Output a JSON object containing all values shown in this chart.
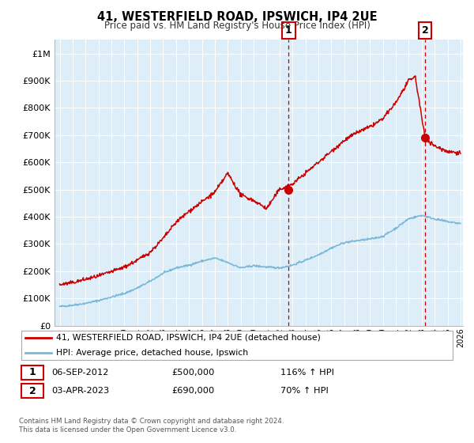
{
  "title": "41, WESTERFIELD ROAD, IPSWICH, IP4 2UE",
  "subtitle": "Price paid vs. HM Land Registry's House Price Index (HPI)",
  "legend_line1": "41, WESTERFIELD ROAD, IPSWICH, IP4 2UE (detached house)",
  "legend_line2": "HPI: Average price, detached house, Ipswich",
  "annotation1_date": "06-SEP-2012",
  "annotation1_price": "£500,000",
  "annotation1_hpi": "116% ↑ HPI",
  "annotation2_date": "03-APR-2023",
  "annotation2_price": "£690,000",
  "annotation2_hpi": "70% ↑ HPI",
  "footnote1": "Contains HM Land Registry data © Crown copyright and database right 2024.",
  "footnote2": "This data is licensed under the Open Government Licence v3.0.",
  "hpi_color": "#7ab8d9",
  "price_color": "#cc0000",
  "marker_color": "#cc0000",
  "dashed_line_color": "#cc0000",
  "background_color": "#ddeef8",
  "ylim": [
    0,
    1050000
  ],
  "yticks": [
    0,
    100000,
    200000,
    300000,
    400000,
    500000,
    600000,
    700000,
    800000,
    900000,
    1000000
  ],
  "ytick_labels": [
    "£0",
    "£100K",
    "£200K",
    "£300K",
    "£400K",
    "£500K",
    "£600K",
    "£700K",
    "£800K",
    "£900K",
    "£1M"
  ],
  "xlim_start": 1994.6,
  "xlim_end": 2026.2,
  "sale1_x": 2012.7,
  "sale1_y": 500000,
  "sale2_x": 2023.25,
  "sale2_y": 690000,
  "hpi_points_x": [
    1995,
    1996,
    1997,
    1998,
    1999,
    2000,
    2001,
    2002,
    2003,
    2004,
    2005,
    2006,
    2007,
    2008,
    2009,
    2010,
    2011,
    2012,
    2013,
    2014,
    2015,
    2016,
    2017,
    2018,
    2019,
    2020,
    2021,
    2022,
    2023,
    2024,
    2025,
    2026
  ],
  "hpi_points_y": [
    70000,
    75000,
    82000,
    92000,
    105000,
    118000,
    138000,
    163000,
    192000,
    212000,
    222000,
    237000,
    248000,
    232000,
    212000,
    220000,
    215000,
    212000,
    222000,
    240000,
    260000,
    285000,
    305000,
    312000,
    318000,
    328000,
    358000,
    393000,
    405000,
    392000,
    382000,
    375000
  ],
  "price_points_x": [
    1995,
    1996,
    1997,
    1998,
    1999,
    2000,
    2001,
    2002,
    2003,
    2004,
    2005,
    2006,
    2007,
    2008,
    2009,
    2010,
    2011,
    2012,
    2013,
    2014,
    2015,
    2016,
    2017,
    2018,
    2019,
    2020,
    2021,
    2022,
    2022.5,
    2023.25,
    2024,
    2025,
    2026
  ],
  "price_points_y": [
    150000,
    158000,
    170000,
    182000,
    198000,
    215000,
    240000,
    270000,
    320000,
    380000,
    420000,
    455000,
    490000,
    560000,
    480000,
    460000,
    430000,
    500000,
    520000,
    560000,
    600000,
    640000,
    680000,
    710000,
    730000,
    760000,
    820000,
    900000,
    915000,
    690000,
    660000,
    640000,
    635000
  ]
}
